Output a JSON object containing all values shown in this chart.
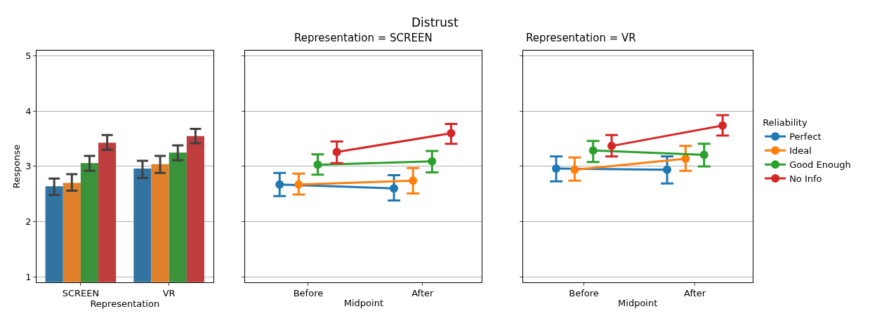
{
  "chart_data": [
    {
      "type": "bar",
      "xlabel": "Representation",
      "ylabel": "Response",
      "categories": [
        "SCREEN",
        "VR"
      ],
      "ylim": [
        0.9,
        5.1
      ],
      "yticks": [
        1,
        2,
        3,
        4,
        5
      ],
      "grid": "y",
      "legend": false,
      "series": [
        {
          "color": "#3274a1",
          "values": [
            2.64,
            2.96
          ],
          "errors": [
            [
              2.48,
              2.78
            ],
            [
              2.79,
              3.1
            ]
          ]
        },
        {
          "color": "#e1812c",
          "values": [
            2.7,
            3.04
          ],
          "errors": [
            [
              2.56,
              2.86
            ],
            [
              2.88,
              3.19
            ]
          ]
        },
        {
          "color": "#3a923a",
          "values": [
            3.06,
            3.25
          ],
          "errors": [
            [
              2.92,
              3.19
            ],
            [
              3.11,
              3.38
            ]
          ]
        },
        {
          "color": "#c03d3e",
          "values": [
            3.43,
            3.55
          ],
          "errors": [
            [
              3.3,
              3.57
            ],
            [
              3.42,
              3.68
            ]
          ]
        }
      ]
    },
    {
      "type": "line",
      "title": "Distrust",
      "subtitle": "Representation = SCREEN",
      "xlabel": "Midpoint",
      "categories": [
        "Before",
        "After"
      ],
      "ylim": [
        0.9,
        5.1
      ],
      "yticks": [
        1,
        2,
        3,
        4,
        5
      ],
      "grid": "y",
      "tick_labels": "x",
      "marker": "circle",
      "line_style": "solid",
      "legend": false,
      "series": [
        {
          "color": "#1f77b4",
          "values": [
            2.67,
            2.6
          ],
          "errors": [
            [
              2.46,
              2.88
            ],
            [
              2.38,
              2.84
            ]
          ]
        },
        {
          "color": "#ff7f0e",
          "values": [
            2.67,
            2.74
          ],
          "errors": [
            [
              2.49,
              2.87
            ],
            [
              2.51,
              2.97
            ]
          ]
        },
        {
          "color": "#2ca02c",
          "values": [
            3.03,
            3.09
          ],
          "errors": [
            [
              2.85,
              3.22
            ],
            [
              2.89,
              3.28
            ]
          ]
        },
        {
          "color": "#d62728",
          "values": [
            3.26,
            3.6
          ],
          "errors": [
            [
              3.06,
              3.45
            ],
            [
              3.41,
              3.77
            ]
          ]
        }
      ]
    },
    {
      "type": "line",
      "title": "Representation = VR",
      "xlabel": "Midpoint",
      "categories": [
        "Before",
        "After"
      ],
      "ylim": [
        0.9,
        5.1
      ],
      "yticks": [
        1,
        2,
        3,
        4,
        5
      ],
      "grid": "y",
      "tick_labels": "x",
      "marker": "circle",
      "line_style": "solid",
      "legend": "right",
      "legend_title": "Reliability",
      "series": [
        {
          "name": "Perfect",
          "color": "#1f77b4",
          "values": [
            2.96,
            2.94
          ],
          "errors": [
            [
              2.73,
              3.18
            ],
            [
              2.69,
              3.18
            ]
          ]
        },
        {
          "name": "Ideal",
          "color": "#ff7f0e",
          "values": [
            2.94,
            3.14
          ],
          "errors": [
            [
              2.74,
              3.16
            ],
            [
              2.92,
              3.37
            ]
          ]
        },
        {
          "name": "Good Enough",
          "color": "#2ca02c",
          "values": [
            3.29,
            3.21
          ],
          "errors": [
            [
              3.08,
              3.46
            ],
            [
              3.0,
              3.41
            ]
          ]
        },
        {
          "name": "No Info",
          "color": "#d62728",
          "values": [
            3.37,
            3.74
          ],
          "errors": [
            [
              3.18,
              3.57
            ],
            [
              3.56,
              3.93
            ]
          ]
        }
      ]
    }
  ]
}
